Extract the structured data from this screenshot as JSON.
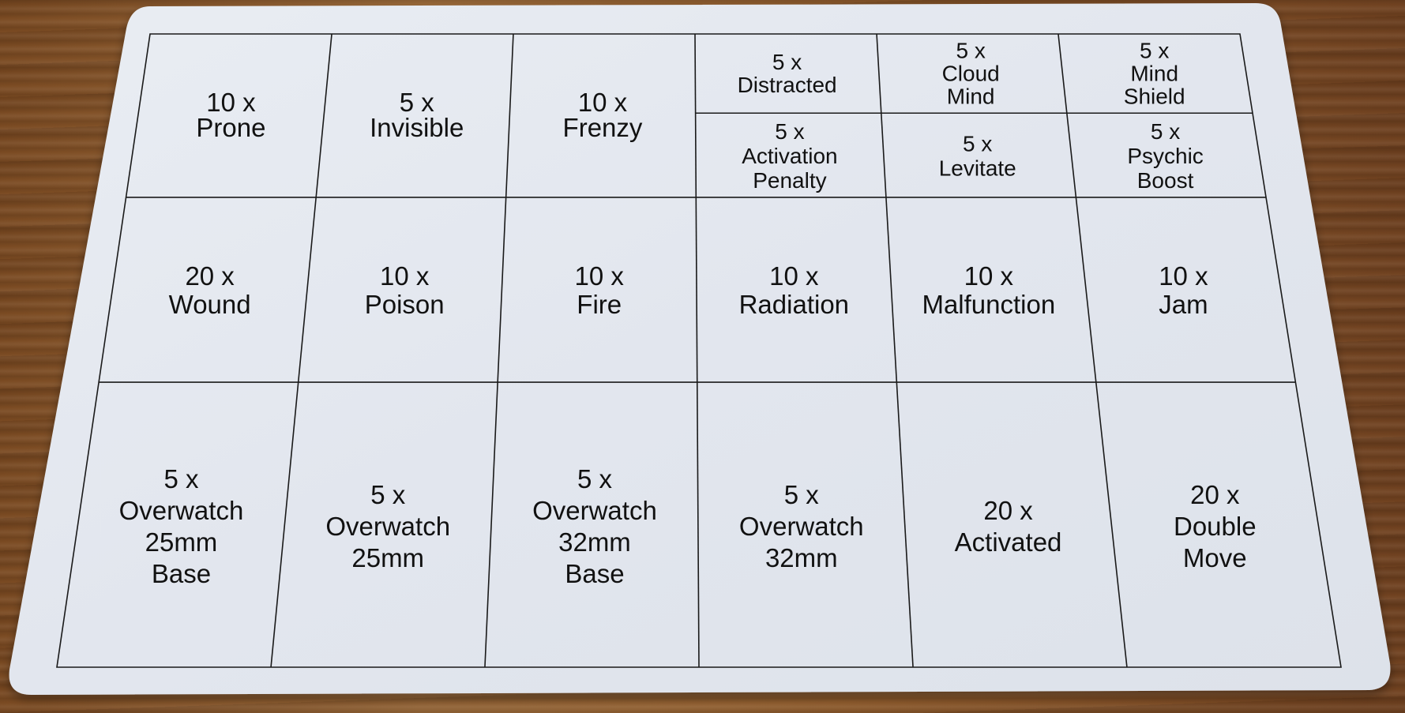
{
  "card": {
    "colors": {
      "card": "#e4e8ef",
      "line": "#1a1a1a",
      "text": "#111111",
      "table": "#8a5a2e"
    },
    "row1_large": [
      {
        "qty": "10 x",
        "name": [
          "Prone"
        ]
      },
      {
        "qty": "5 x",
        "name": [
          "Invisible"
        ]
      },
      {
        "qty": "10 x",
        "name": [
          "Frenzy"
        ]
      }
    ],
    "row1_split_top": [
      {
        "qty": "5 x",
        "name": [
          "Distracted"
        ]
      },
      {
        "qty": "5 x",
        "name": [
          "Cloud",
          "Mind"
        ]
      },
      {
        "qty": "5 x",
        "name": [
          "Mind",
          "Shield"
        ]
      }
    ],
    "row1_split_bottom": [
      {
        "qty": "5 x",
        "name": [
          "Activation",
          "Penalty"
        ]
      },
      {
        "qty": "5 x",
        "name": [
          "Levitate"
        ]
      },
      {
        "qty": "5 x",
        "name": [
          "Psychic",
          "Boost"
        ]
      }
    ],
    "row2": [
      {
        "qty": "20 x",
        "name": [
          "Wound"
        ]
      },
      {
        "qty": "10 x",
        "name": [
          "Poison"
        ]
      },
      {
        "qty": "10 x",
        "name": [
          "Fire"
        ]
      },
      {
        "qty": "10 x",
        "name": [
          "Radiation"
        ]
      },
      {
        "qty": "10 x",
        "name": [
          "Malfunction"
        ]
      },
      {
        "qty": "10 x",
        "name": [
          "Jam"
        ]
      }
    ],
    "row3": [
      {
        "qty": "5 x",
        "name": [
          "Overwatch",
          "25mm",
          "Base"
        ]
      },
      {
        "qty": "5 x",
        "name": [
          "Overwatch",
          "25mm"
        ]
      },
      {
        "qty": "5 x",
        "name": [
          "Overwatch",
          "32mm",
          "Base"
        ]
      },
      {
        "qty": "5 x",
        "name": [
          "Overwatch",
          "32mm"
        ]
      },
      {
        "qty": "20 x",
        "name": [
          "Activated"
        ]
      },
      {
        "qty": "20 x",
        "name": [
          "Double",
          "Move"
        ]
      }
    ]
  }
}
